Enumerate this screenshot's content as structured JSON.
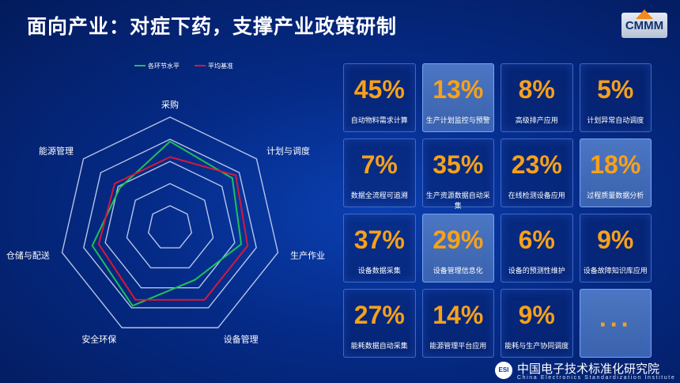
{
  "title": "面向产业：对症下药，支撑产业政策研制",
  "logo": {
    "text": "CMMM"
  },
  "chart_data": {
    "type": "radar",
    "axes": [
      "采购",
      "计划与调度",
      "生产作业",
      "设备管理",
      "安全环保",
      "仓储与配送",
      "能源管理"
    ],
    "rings": 5,
    "series": [
      {
        "name": "各环节水平",
        "color": "#1fbf5a",
        "values": [
          0.78,
          0.72,
          0.66,
          0.52,
          0.78,
          0.72,
          0.58
        ]
      },
      {
        "name": "平均基准",
        "color": "#d6183a",
        "values": [
          0.64,
          0.76,
          0.72,
          0.72,
          0.72,
          0.66,
          0.64
        ]
      }
    ]
  },
  "stats": [
    {
      "pct": "45%",
      "label": "自动物料需求计算",
      "highlight": false
    },
    {
      "pct": "13%",
      "label": "生产计划监控与预警",
      "highlight": true
    },
    {
      "pct": "8%",
      "label": "高级排产应用",
      "highlight": false
    },
    {
      "pct": "5%",
      "label": "计划异常自动调度",
      "highlight": false
    },
    {
      "pct": "7%",
      "label": "数据全流程可追溯",
      "highlight": false
    },
    {
      "pct": "35%",
      "label": "生产资源数据自动采集",
      "highlight": false
    },
    {
      "pct": "23%",
      "label": "在线检测设备应用",
      "highlight": false
    },
    {
      "pct": "18%",
      "label": "过程质量数据分析",
      "highlight": true
    },
    {
      "pct": "37%",
      "label": "设备数据采集",
      "highlight": false
    },
    {
      "pct": "29%",
      "label": "设备管理信息化",
      "highlight": true
    },
    {
      "pct": "6%",
      "label": "设备的预测性维护",
      "highlight": false
    },
    {
      "pct": "9%",
      "label": "设备故障知识库应用",
      "highlight": false
    },
    {
      "pct": "27%",
      "label": "能耗数据自动采集",
      "highlight": false
    },
    {
      "pct": "14%",
      "label": "能源管理平台应用",
      "highlight": false
    },
    {
      "pct": "9%",
      "label": "能耗与生产协同调度",
      "highlight": false
    }
  ],
  "more_label": "···",
  "footer": {
    "badge": "ESI",
    "org_cn": "中国电子技术标准化研究院",
    "org_en": "China Electronics Standardization Institute"
  }
}
